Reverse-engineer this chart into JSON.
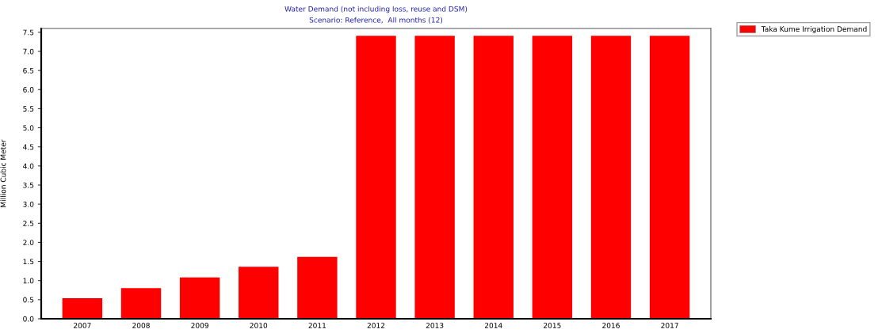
{
  "chart_data": {
    "type": "bar",
    "title": "Water Demand (not including loss, reuse and DSM)",
    "subtitle": "Scenario: Reference,  All months (12)",
    "ylabel": "Million Cubic Meter",
    "categories": [
      "2007",
      "2008",
      "2009",
      "2010",
      "2011",
      "2012",
      "2013",
      "2014",
      "2015",
      "2016",
      "2017"
    ],
    "series": [
      {
        "name": "Taka Kume Irrigation Demand",
        "color": "#ff0000",
        "values": [
          0.54,
          0.8,
          1.08,
          1.36,
          1.62,
          7.41,
          7.41,
          7.41,
          7.41,
          7.41,
          7.41
        ]
      }
    ],
    "ylim": [
      0,
      7.6
    ],
    "yticks": [
      {
        "value": 0,
        "label": "0.0"
      },
      0.5,
      {
        "value": 1,
        "label": "1.0"
      },
      1.5,
      {
        "value": 2,
        "label": "2.0"
      },
      2.5,
      {
        "value": 3,
        "label": "3.0"
      },
      3.5,
      {
        "value": 4,
        "label": "4.0"
      },
      4.5,
      {
        "value": 5,
        "label": "5.0"
      },
      5.5,
      {
        "value": 6,
        "label": "6.0"
      },
      6.5,
      {
        "value": 7,
        "label": "7.0"
      },
      7.5
    ],
    "grid": false,
    "legend": "top right"
  }
}
